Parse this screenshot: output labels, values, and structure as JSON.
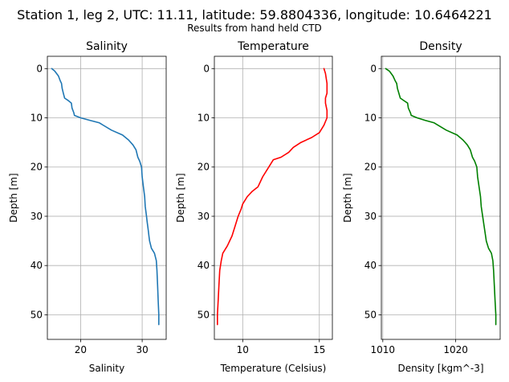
{
  "figure": {
    "title": "Station 1, leg 2, UTC: 11.11, latitude: 59.8804336, longitude: 10.6464221",
    "subtitle": "Results from hand held CTD"
  },
  "chart_data": [
    {
      "type": "line",
      "title": "Salinity",
      "xlabel": "Salinity",
      "ylabel": "Depth [m]",
      "xlim": [
        14.6,
        33.9
      ],
      "ylim": [
        55,
        -2.5
      ],
      "y_inverted": true,
      "xticks": [
        20,
        30
      ],
      "yticks": [
        0,
        10,
        20,
        30,
        40,
        50
      ],
      "grid": true,
      "color": "#1f77b4",
      "series": [
        {
          "x": [
            15.3,
            15.8,
            16.4,
            16.7,
            16.9,
            17.0,
            17.2,
            17.4,
            18.0,
            18.5,
            18.6,
            18.9,
            19.0,
            20.0,
            21.5,
            23.0,
            25.0,
            26.8,
            27.8,
            28.5,
            29.0,
            29.3,
            29.6,
            29.9,
            30.0,
            30.2,
            30.4,
            30.5,
            30.7,
            30.8,
            30.9,
            31.0,
            31.1,
            31.2,
            31.5,
            32.0,
            32.3,
            32.4,
            32.5,
            32.6,
            32.7,
            32.7
          ],
          "y": [
            0,
            0.5,
            1.5,
            2.5,
            3.0,
            4.0,
            5.0,
            6.0,
            6.5,
            7.0,
            8.0,
            9.0,
            9.5,
            10.0,
            10.5,
            11.0,
            12.5,
            13.5,
            14.5,
            15.5,
            16.5,
            18.0,
            18.8,
            20.0,
            22.0,
            24.0,
            26.0,
            28.0,
            30.0,
            31.0,
            32.0,
            33.0,
            34.0,
            35.0,
            36.5,
            37.5,
            39.0,
            41.0,
            44.0,
            47.0,
            50.0,
            52.0
          ]
        }
      ]
    },
    {
      "type": "line",
      "title": "Temperature",
      "xlabel": "Temperature (Celsius)",
      "ylabel": "Depth [m]",
      "xlim": [
        8.15,
        15.85
      ],
      "ylim": [
        55,
        -2.5
      ],
      "y_inverted": true,
      "xticks": [
        10,
        15
      ],
      "yticks": [
        0,
        10,
        20,
        30,
        40,
        50
      ],
      "grid": true,
      "color": "#ff0000",
      "series": [
        {
          "x": [
            15.3,
            15.4,
            15.5,
            15.5,
            15.4,
            15.4,
            15.5,
            15.5,
            15.3,
            15.0,
            14.5,
            13.8,
            13.3,
            13.0,
            12.5,
            12.0,
            11.7,
            11.3,
            11.0,
            10.6,
            10.3,
            10.0,
            9.9,
            9.7,
            9.5,
            9.3,
            9.0,
            8.7,
            8.6,
            8.5,
            8.45,
            8.4,
            8.35,
            8.35
          ],
          "y": [
            0,
            1.0,
            3.0,
            5.0,
            6.0,
            7.0,
            8.5,
            10.0,
            11.5,
            13.0,
            14.0,
            15.0,
            16.0,
            17.0,
            18.0,
            18.5,
            20.0,
            22.0,
            24.0,
            25.0,
            26.0,
            27.5,
            28.5,
            30.0,
            32.0,
            34.0,
            36.0,
            37.5,
            39.0,
            41.0,
            44.0,
            47.0,
            50.0,
            52.0
          ]
        }
      ]
    },
    {
      "type": "line",
      "title": "Density",
      "xlabel": "Density [kgm^-3]",
      "ylabel": "Depth [m]",
      "xlim": [
        1009.8,
        1026.1
      ],
      "ylim": [
        55,
        -2.5
      ],
      "y_inverted": true,
      "xticks": [
        1010,
        1020
      ],
      "yticks": [
        0,
        10,
        20,
        30,
        40,
        50
      ],
      "grid": true,
      "color": "#008000",
      "series": [
        {
          "x": [
            1010.4,
            1010.9,
            1011.4,
            1011.7,
            1011.9,
            1012.0,
            1012.2,
            1012.4,
            1012.9,
            1013.4,
            1013.5,
            1013.8,
            1013.9,
            1014.7,
            1015.8,
            1017.0,
            1018.7,
            1020.2,
            1021.0,
            1021.6,
            1022.0,
            1022.3,
            1022.6,
            1022.9,
            1023.0,
            1023.2,
            1023.4,
            1023.5,
            1023.7,
            1023.8,
            1023.9,
            1024.0,
            1024.1,
            1024.2,
            1024.5,
            1024.9,
            1025.1,
            1025.2,
            1025.3,
            1025.4,
            1025.5,
            1025.5
          ],
          "y": [
            0,
            0.5,
            1.5,
            2.5,
            3.0,
            4.0,
            5.0,
            6.0,
            6.5,
            7.0,
            8.0,
            9.0,
            9.5,
            10.0,
            10.5,
            11.0,
            12.5,
            13.5,
            14.5,
            15.5,
            16.5,
            18.0,
            18.8,
            20.0,
            22.0,
            24.0,
            26.0,
            28.0,
            30.0,
            31.0,
            32.0,
            33.0,
            34.0,
            35.0,
            36.5,
            37.5,
            39.0,
            41.0,
            44.0,
            47.0,
            50.0,
            52.0
          ]
        }
      ]
    }
  ]
}
